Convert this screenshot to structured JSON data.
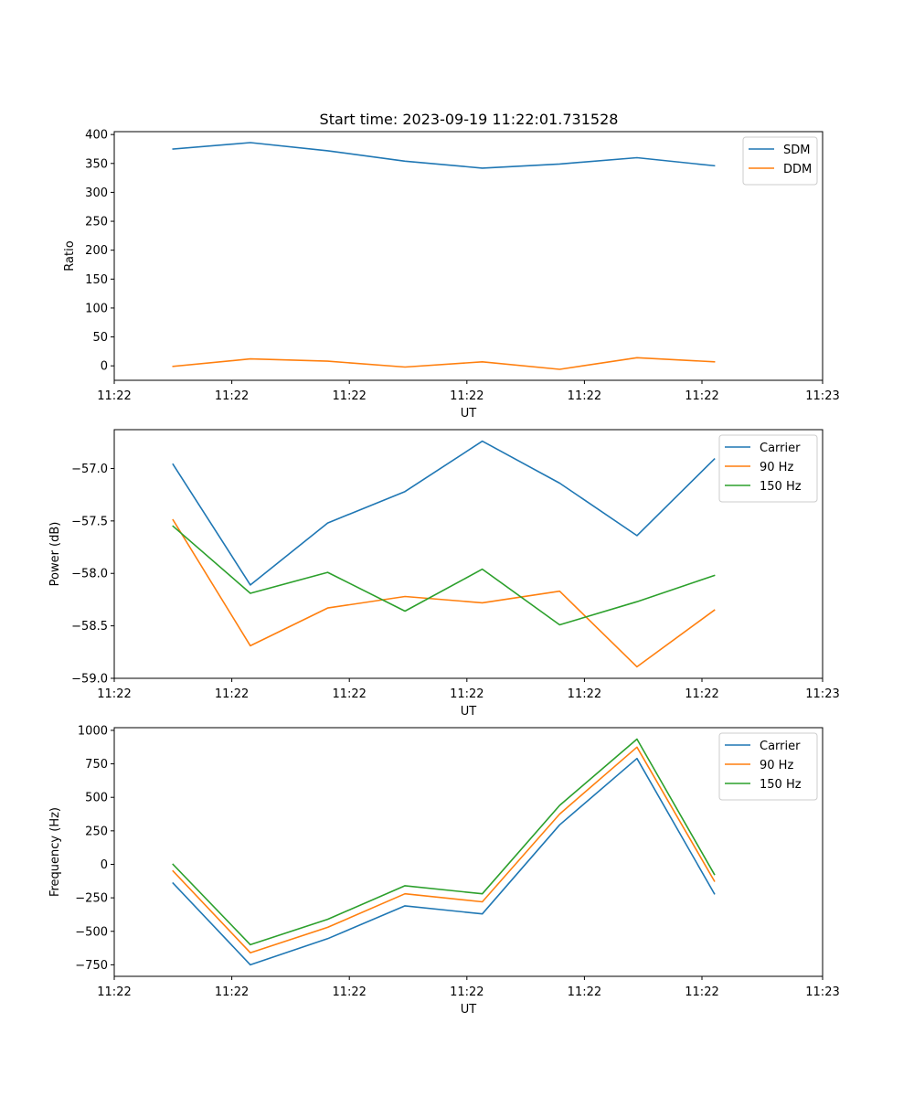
{
  "title": "Start time: 2023-09-19 11:22:01.731528",
  "colors": {
    "blue": "#1f77b4",
    "orange": "#ff7f0e",
    "green": "#2ca02c"
  },
  "chart_data": [
    {
      "type": "line",
      "name": "ratio",
      "xlabel": "UT",
      "ylabel": "Ratio",
      "x_index": [
        0,
        1,
        2,
        3,
        4,
        5,
        6,
        7
      ],
      "xlim": [
        -0.76,
        8.4
      ],
      "xtick_pos": [
        -0.76,
        0.76,
        2.28,
        3.8,
        5.32,
        6.84,
        8.4
      ],
      "xtick_labels": [
        "11:22",
        "11:22",
        "11:22",
        "11:22",
        "11:22",
        "11:22",
        "11:23"
      ],
      "ylim": [
        -25,
        405
      ],
      "yticks": [
        0,
        50,
        100,
        150,
        200,
        250,
        300,
        350,
        400
      ],
      "ytick_labels": [
        "0",
        "50",
        "100",
        "150",
        "200",
        "250",
        "300",
        "350",
        "400"
      ],
      "legend": "top-right",
      "series": [
        {
          "name": "SDM",
          "color": "#1f77b4",
          "values": [
            375,
            386,
            372,
            354,
            342,
            349,
            360,
            346
          ]
        },
        {
          "name": "DDM",
          "color": "#ff7f0e",
          "values": [
            -1,
            12,
            8,
            -2,
            7,
            -6,
            14,
            7
          ]
        }
      ]
    },
    {
      "type": "line",
      "name": "power",
      "xlabel": "UT",
      "ylabel": "Power (dB)",
      "x_index": [
        0,
        1,
        2,
        3,
        4,
        5,
        6,
        7
      ],
      "xlim": [
        -0.76,
        8.4
      ],
      "xtick_pos": [
        -0.76,
        0.76,
        2.28,
        3.8,
        5.32,
        6.84,
        8.4
      ],
      "xtick_labels": [
        "11:22",
        "11:22",
        "11:22",
        "11:22",
        "11:22",
        "11:22",
        "11:23"
      ],
      "ylim": [
        -59.0,
        -56.63
      ],
      "yticks": [
        -59.0,
        -58.5,
        -58.0,
        -57.5,
        -57.0
      ],
      "ytick_labels": [
        "−59.0",
        "−58.5",
        "−58.0",
        "−57.5",
        "−57.0"
      ],
      "legend": "top-right",
      "series": [
        {
          "name": "Carrier",
          "color": "#1f77b4",
          "values": [
            -56.96,
            -58.11,
            -57.52,
            -57.22,
            -56.74,
            -57.14,
            -57.64,
            -56.91
          ]
        },
        {
          "name": "90 Hz",
          "color": "#ff7f0e",
          "values": [
            -57.49,
            -58.69,
            -58.33,
            -58.22,
            -58.28,
            -58.17,
            -58.89,
            -58.35
          ]
        },
        {
          "name": "150 Hz",
          "color": "#2ca02c",
          "values": [
            -57.55,
            -58.19,
            -57.99,
            -58.36,
            -57.96,
            -58.49,
            -58.27,
            -58.02
          ]
        }
      ]
    },
    {
      "type": "line",
      "name": "frequency",
      "xlabel": "UT",
      "ylabel": "Frequency (Hz)",
      "x_index": [
        0,
        1,
        2,
        3,
        4,
        5,
        6,
        7
      ],
      "xlim": [
        -0.76,
        8.4
      ],
      "xtick_pos": [
        -0.76,
        0.76,
        2.28,
        3.8,
        5.32,
        6.84,
        8.4
      ],
      "xtick_labels": [
        "11:22",
        "11:22",
        "11:22",
        "11:22",
        "11:22",
        "11:22",
        "11:23"
      ],
      "ylim": [
        -836,
        1020
      ],
      "yticks": [
        -750,
        -500,
        -250,
        0,
        250,
        500,
        750,
        1000
      ],
      "ytick_labels": [
        "−750",
        "−500",
        "−250",
        "0",
        "250",
        "500",
        "750",
        "1000"
      ],
      "legend": "top-right",
      "series": [
        {
          "name": "Carrier",
          "color": "#1f77b4",
          "values": [
            -140,
            -750,
            -555,
            -310,
            -370,
            295,
            790,
            -220
          ]
        },
        {
          "name": "90 Hz",
          "color": "#ff7f0e",
          "values": [
            -50,
            -660,
            -470,
            -220,
            -280,
            375,
            875,
            -125
          ]
        },
        {
          "name": "150 Hz",
          "color": "#2ca02c",
          "values": [
            0,
            -600,
            -410,
            -160,
            -220,
            440,
            935,
            -75
          ]
        }
      ]
    }
  ]
}
